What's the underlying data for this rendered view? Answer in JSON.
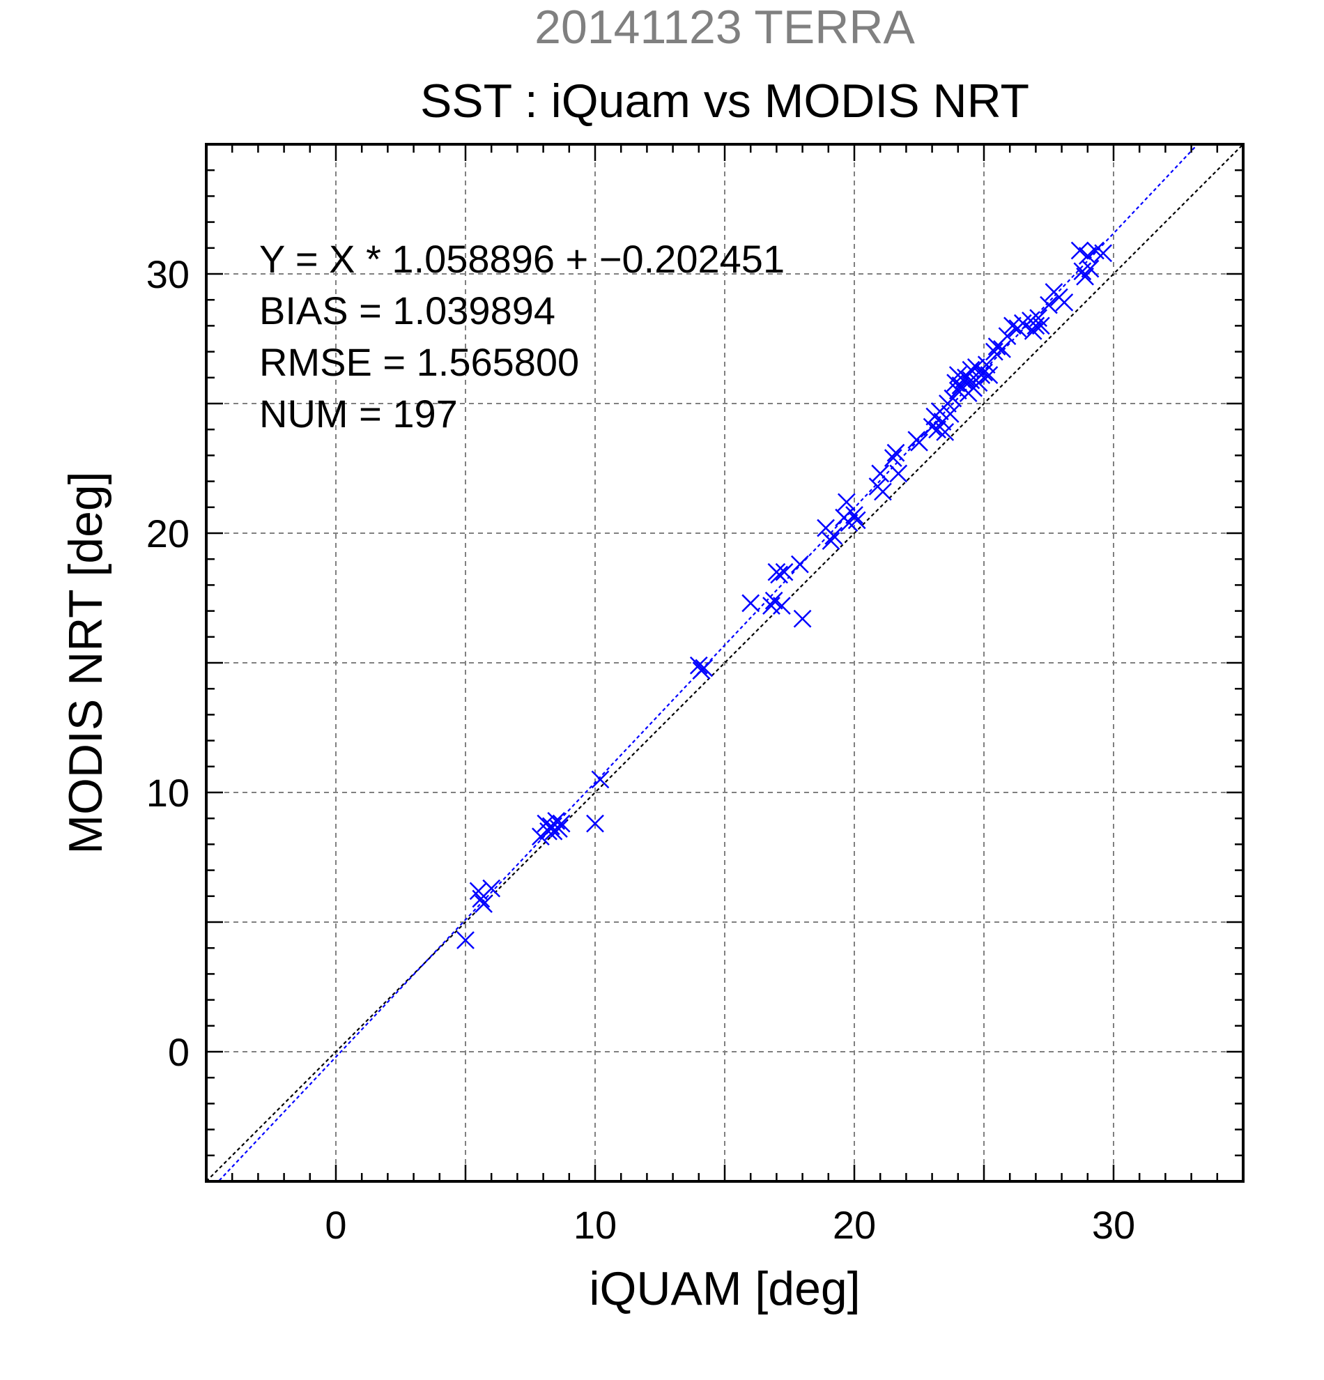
{
  "colors": {
    "data": "#0000ff",
    "identity": "#000000",
    "grid": "#808080",
    "suptitle": "#808080",
    "text": "#000000"
  },
  "icons": {
    "marker": "x-marker"
  },
  "chart_data": {
    "type": "scatter",
    "suptitle": "20141123 TERRA",
    "title": "SST : iQuam vs MODIS NRT",
    "xlabel": "iQUAM [deg]",
    "ylabel": "MODIS NRT [deg]",
    "xlim": [
      -5,
      35
    ],
    "ylim": [
      -5,
      35
    ],
    "xticks": [
      0,
      10,
      20,
      30
    ],
    "yticks": [
      0,
      10,
      20,
      30
    ],
    "xtick_labels": [
      "0",
      "10",
      "20",
      "30"
    ],
    "ytick_labels": [
      "0",
      "10",
      "20",
      "30"
    ],
    "grid": true,
    "stats": [
      "Y = X * 1.058896 + −0.202451",
      "BIAS = 1.039894",
      "RMSE = 1.565800",
      "NUM = 197"
    ],
    "fit": {
      "slope": 1.058896,
      "intercept": -0.202451
    },
    "identity_line": true,
    "series": [
      {
        "marker": "x",
        "x": [
          5.0,
          5.5,
          5.6,
          5.7,
          6.0,
          7.9,
          8.1,
          8.2,
          8.3,
          8.4,
          8.5,
          8.6,
          8.7,
          10.0,
          10.2,
          14.0,
          14.1,
          14.2,
          16.0,
          16.8,
          16.9,
          17.0,
          17.1,
          17.2,
          17.3,
          17.9,
          18.0,
          18.9,
          19.1,
          19.2,
          19.6,
          19.7,
          19.8,
          20.0,
          20.1,
          20.9,
          21.0,
          21.1,
          21.5,
          21.6,
          21.7,
          22.4,
          22.5,
          23.0,
          23.1,
          23.2,
          23.3,
          23.4,
          23.5,
          23.6,
          23.7,
          23.8,
          23.9,
          24.0,
          24.0,
          24.1,
          24.2,
          24.3,
          24.4,
          24.5,
          24.5,
          24.6,
          24.7,
          24.8,
          24.9,
          25.0,
          25.1,
          25.2,
          25.4,
          25.5,
          25.7,
          25.9,
          26.1,
          26.3,
          26.5,
          26.8,
          26.9,
          27.0,
          27.1,
          27.2,
          27.5,
          27.7,
          27.9,
          28.1,
          28.7,
          28.8,
          28.9,
          29.0,
          29.1,
          29.3,
          29.6
        ],
        "y": [
          4.3,
          6.2,
          5.9,
          5.7,
          6.3,
          8.3,
          8.8,
          8.5,
          8.7,
          8.5,
          8.9,
          8.6,
          8.8,
          8.8,
          10.5,
          14.9,
          14.7,
          14.8,
          17.3,
          17.2,
          17.4,
          18.5,
          18.4,
          17.2,
          18.5,
          18.8,
          16.7,
          20.2,
          19.7,
          19.9,
          20.6,
          21.2,
          20.4,
          20.7,
          20.5,
          21.8,
          22.3,
          21.6,
          22.9,
          23.1,
          22.3,
          23.6,
          23.5,
          24.1,
          24.5,
          24.0,
          24.7,
          24.3,
          23.9,
          25.0,
          24.6,
          25.2,
          25.8,
          25.5,
          26.1,
          25.7,
          25.9,
          26.0,
          25.4,
          25.9,
          26.3,
          25.6,
          26.4,
          25.8,
          26.1,
          26.2,
          26.5,
          26.1,
          27.0,
          27.2,
          27.1,
          27.6,
          28.0,
          27.9,
          28.1,
          28.2,
          27.8,
          28.0,
          28.3,
          28.0,
          28.8,
          29.3,
          29.1,
          28.9,
          30.9,
          30.1,
          29.9,
          30.7,
          30.2,
          30.9,
          30.8
        ]
      }
    ]
  }
}
